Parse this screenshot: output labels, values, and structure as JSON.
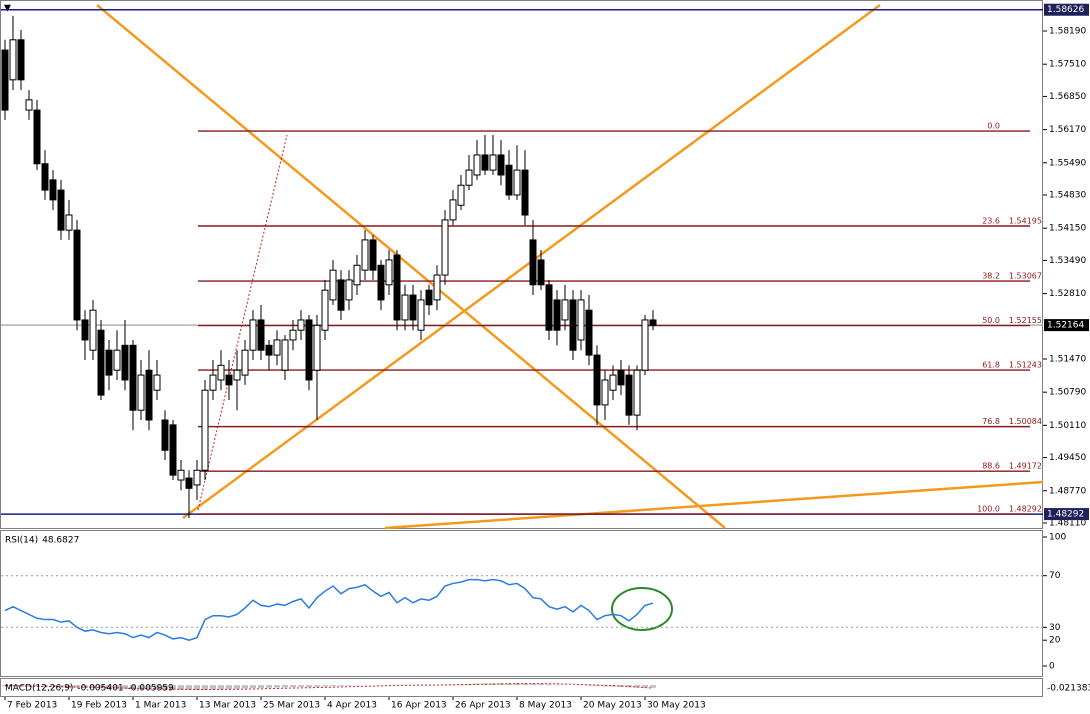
{
  "chart_data": [
    {
      "type": "candlestick",
      "categories": [
        "7 Feb 2013",
        null,
        null,
        null,
        null,
        null,
        null,
        null,
        "19 Feb 2013",
        null,
        null,
        null,
        null,
        null,
        null,
        null,
        "1 Mar 2013",
        null,
        null,
        null,
        null,
        null,
        null,
        null,
        "13 Mar 2013",
        null,
        null,
        null,
        null,
        null,
        null,
        null,
        "25 Mar 2013",
        null,
        null,
        null,
        null,
        null,
        null,
        null,
        "4 Apr 2013",
        null,
        null,
        null,
        null,
        null,
        null,
        null,
        "16 Apr 2013",
        null,
        null,
        null,
        null,
        null,
        null,
        null,
        "26 Apr 2013",
        null,
        null,
        null,
        null,
        null,
        null,
        null,
        "8 May 2013",
        null,
        null,
        null,
        null,
        null,
        null,
        null,
        "20 May 2013",
        null,
        null,
        null,
        null,
        null,
        null,
        null,
        "30 May 2013",
        null
      ],
      "open": [
        1.578,
        1.5719,
        1.5801,
        1.5657,
        1.5657,
        1.5547,
        1.5514,
        1.5493,
        1.5411,
        1.5411,
        1.5227,
        1.5165,
        1.5206,
        1.5165,
        1.5124,
        1.5175,
        1.5175,
        1.5042,
        1.5124,
        1.5083,
        1.5022,
        1.5012,
        1.4899,
        1.4903,
        1.4889,
        1.4919,
        1.5083,
        1.5104,
        1.5114,
        1.5104,
        1.5114,
        1.5165,
        1.5227,
        1.5175,
        1.5155,
        1.5124,
        1.5186,
        1.5206,
        1.5227,
        1.5124,
        1.5206,
        1.5268,
        1.5309,
        1.5268,
        1.5299,
        1.5329,
        1.5391,
        1.5339,
        1.5299,
        1.536,
        1.5227,
        1.5278,
        1.5206,
        1.5288,
        1.5268,
        1.5319,
        1.5432,
        1.5462,
        1.5503,
        1.5524,
        1.5565,
        1.5534,
        1.5565,
        1.5544,
        1.5483,
        1.5534,
        1.5391,
        1.535,
        1.5299,
        1.5268,
        1.5227,
        1.5268,
        1.5186,
        1.5247,
        1.5155,
        1.5053,
        1.5083,
        1.5124,
        1.5114,
        1.5032,
        1.5124,
        1.5227
      ],
      "high": [
        1.5801,
        1.585,
        1.5821,
        1.5698,
        1.5678,
        1.5575,
        1.5534,
        1.5514,
        1.5473,
        1.5432,
        1.5247,
        1.5268,
        1.5227,
        1.5186,
        1.5206,
        1.5227,
        1.5186,
        1.5145,
        1.5165,
        1.5145,
        1.5042,
        1.5022,
        1.494,
        1.4919,
        1.494,
        1.5104,
        1.5145,
        1.5165,
        1.5145,
        1.5165,
        1.5186,
        1.5247,
        1.5258,
        1.5186,
        1.5206,
        1.5196,
        1.5227,
        1.5247,
        1.5237,
        1.5237,
        1.5309,
        1.535,
        1.5329,
        1.5329,
        1.536,
        1.5411,
        1.5401,
        1.535,
        1.537,
        1.537,
        1.5299,
        1.5299,
        1.5288,
        1.5299,
        1.5339,
        1.5452,
        1.5493,
        1.5524,
        1.5565,
        1.5596,
        1.5606,
        1.5606,
        1.5596,
        1.5575,
        1.5585,
        1.5575,
        1.5432,
        1.537,
        1.5309,
        1.5288,
        1.5299,
        1.5288,
        1.5288,
        1.5278,
        1.5175,
        1.5124,
        1.5134,
        1.5145,
        1.5134,
        1.5134,
        1.5237,
        1.5247
      ],
      "low": [
        1.5637,
        1.5698,
        1.5698,
        1.5637,
        1.5534,
        1.5473,
        1.5452,
        1.5391,
        1.5391,
        1.5206,
        1.5145,
        1.5145,
        1.5063,
        1.5083,
        1.5104,
        1.5083,
        1.5001,
        1.5022,
        1.5001,
        1.5063,
        1.494,
        1.4899,
        1.4878,
        1.4821,
        1.4858,
        1.4899,
        1.5063,
        1.5083,
        1.5063,
        1.5042,
        1.5094,
        1.5145,
        1.5145,
        1.5124,
        1.5134,
        1.5104,
        1.5165,
        1.5186,
        1.5083,
        1.5022,
        1.5186,
        1.5258,
        1.5227,
        1.5247,
        1.5278,
        1.5309,
        1.5309,
        1.5247,
        1.5278,
        1.5206,
        1.5206,
        1.5206,
        1.5186,
        1.5237,
        1.5247,
        1.5299,
        1.5421,
        1.5452,
        1.5493,
        1.5514,
        1.5524,
        1.5524,
        1.5503,
        1.5473,
        1.5473,
        1.5421,
        1.5278,
        1.5288,
        1.5186,
        1.5175,
        1.5206,
        1.5145,
        1.5165,
        1.5134,
        1.5012,
        1.5022,
        1.5063,
        1.5073,
        1.5012,
        1.5001,
        1.5114,
        1.5206
      ],
      "close": [
        1.5657,
        1.5801,
        1.5719,
        1.5678,
        1.5547,
        1.5493,
        1.5473,
        1.5411,
        1.5442,
        1.5227,
        1.5186,
        1.5247,
        1.5073,
        1.5114,
        1.5165,
        1.5104,
        1.5042,
        1.5114,
        1.5022,
        1.5114,
        1.496,
        1.4909,
        1.4919,
        1.4882,
        1.4919,
        1.5083,
        1.5114,
        1.5134,
        1.5094,
        1.5124,
        1.5165,
        1.5227,
        1.5165,
        1.5155,
        1.5186,
        1.5186,
        1.5206,
        1.5227,
        1.5104,
        1.5216,
        1.5288,
        1.5329,
        1.5247,
        1.5309,
        1.5339,
        1.5391,
        1.5329,
        1.5268,
        1.535,
        1.5227,
        1.5278,
        1.5227,
        1.5268,
        1.5258,
        1.5319,
        1.5432,
        1.5473,
        1.5503,
        1.5534,
        1.5565,
        1.5534,
        1.5565,
        1.5524,
        1.5483,
        1.5534,
        1.5442,
        1.5299,
        1.5299,
        1.5206,
        1.5206,
        1.5268,
        1.5165,
        1.5268,
        1.5155,
        1.5053,
        1.5104,
        1.5114,
        1.5094,
        1.5032,
        1.5124,
        1.5227,
        1.5216
      ],
      "ylim": [
        1.48007,
        1.58805
      ],
      "yticks": [
        {
          "value": 1.5819,
          "label": "1.58190"
        },
        {
          "value": 1.5751,
          "label": "1.57510"
        },
        {
          "value": 1.5685,
          "label": "1.56850"
        },
        {
          "value": 1.5617,
          "label": "1.56170"
        },
        {
          "value": 1.5549,
          "label": "1.55490"
        },
        {
          "value": 1.5483,
          "label": "1.54830"
        },
        {
          "value": 1.5415,
          "label": "1.54150"
        },
        {
          "value": 1.5349,
          "label": "1.53490"
        },
        {
          "value": 1.5281,
          "label": "1.52810"
        },
        {
          "value": 1.5147,
          "label": "1.51470"
        },
        {
          "value": 1.5079,
          "label": "1.50790"
        },
        {
          "value": 1.5011,
          "label": "1.50110"
        },
        {
          "value": 1.4945,
          "label": "1.49450"
        },
        {
          "value": 1.4877,
          "label": "1.48770"
        },
        {
          "value": 1.4811,
          "label": "1.48110"
        }
      ],
      "price_lines": [
        {
          "value": 1.58626,
          "color": "#1a1a8c"
        },
        {
          "value": 1.52164,
          "color": "#b0b0b0"
        },
        {
          "value": 1.48292,
          "color": "#1a1a8c"
        }
      ],
      "fib_color": "#8b1a1a",
      "fib_levels": [
        {
          "level": "0.0",
          "price": 1.5614,
          "price_shown": false
        },
        {
          "level": "23.6",
          "price": 1.54195
        },
        {
          "level": "38.2",
          "price": 1.53067
        },
        {
          "level": "50.0",
          "price": 1.52155
        },
        {
          "level": "61.8",
          "price": 1.51243
        },
        {
          "level": "76.8",
          "price": 1.50084
        },
        {
          "level": "88.6",
          "price": 1.49172
        },
        {
          "level": "100.0",
          "price": 1.48292
        }
      ]
    },
    {
      "type": "line",
      "title": "RSI(14)",
      "color": "#2a7be4",
      "values": [
        43,
        46,
        43,
        40,
        37,
        36,
        36,
        34,
        35,
        30,
        27,
        28,
        26,
        25,
        26,
        25,
        22,
        24,
        22,
        26,
        24,
        21,
        22,
        20,
        22,
        36,
        39,
        39,
        38,
        40,
        45,
        51,
        47,
        46,
        48,
        47,
        50,
        52,
        45,
        53,
        58,
        62,
        56,
        60,
        61,
        63,
        58,
        54,
        57,
        49,
        53,
        49,
        52,
        51,
        54,
        62,
        64,
        65,
        67,
        67,
        66,
        67,
        66,
        63,
        64,
        60,
        53,
        52,
        46,
        44,
        46,
        42,
        47,
        43,
        36,
        39,
        40,
        39,
        35,
        40,
        47,
        48.6827
      ],
      "ylim": [
        0,
        100
      ],
      "yticks": [
        0,
        20,
        30,
        70,
        100
      ],
      "levels": [
        30,
        70
      ]
    },
    {
      "type": "macd",
      "title": "MACD(12,26,9)",
      "color": "#c0c0c0",
      "signal_color": "#d02020",
      "values": [
        -0.0021,
        -0.0024,
        -0.0028,
        -0.0031,
        -0.0035,
        -0.0038,
        -0.0042,
        -0.0045,
        -0.0048,
        -0.0053,
        -0.0058,
        -0.0062,
        -0.0066,
        -0.007,
        -0.0073,
        -0.0076,
        -0.008,
        -0.0082,
        -0.0085,
        -0.0088,
        -0.0091,
        -0.0094,
        -0.0096,
        -0.0097,
        -0.0096,
        -0.009,
        -0.0085,
        -0.008,
        -0.0075,
        -0.0071,
        -0.0066,
        -0.006,
        -0.0056,
        -0.0052,
        -0.0048,
        -0.0044,
        -0.0041,
        -0.0038,
        -0.0036,
        -0.0032,
        -0.0027,
        -0.0021,
        -0.0016,
        -0.0012,
        -0.0008,
        -0.0003,
        0.0001,
        0.0003,
        0.0004,
        0.0005,
        0.0005,
        0.0004,
        0.0004,
        0.0003,
        0.0004,
        0.0008,
        0.0013,
        0.0018,
        0.0023,
        0.0028,
        0.0032,
        0.0035,
        0.0037,
        0.0037,
        0.0038,
        0.0035,
        0.0029,
        0.0023,
        0.0016,
        0.0009,
        0.0004,
        -0.0002,
        -0.0006,
        -0.0011,
        -0.0018,
        -0.0024,
        -0.003,
        -0.0036,
        -0.0043,
        -0.0049,
        -0.0052,
        -0.005401
      ],
      "signal": [
        -0.001,
        -0.0013,
        -0.0016,
        -0.0019,
        -0.0022,
        -0.0025,
        -0.0028,
        -0.0031,
        -0.0034,
        -0.0037,
        -0.004,
        -0.0044,
        -0.0047,
        -0.0051,
        -0.0054,
        -0.0058,
        -0.0061,
        -0.0065,
        -0.0068,
        -0.0071,
        -0.0075,
        -0.0078,
        -0.0081,
        -0.0084,
        -0.0086,
        -0.0087,
        -0.0087,
        -0.0086,
        -0.0084,
        -0.0082,
        -0.0079,
        -0.0076,
        -0.0073,
        -0.0069,
        -0.0066,
        -0.0062,
        -0.0058,
        -0.0055,
        -0.0051,
        -0.0048,
        -0.0044,
        -0.004,
        -0.0036,
        -0.0032,
        -0.0028,
        -0.0023,
        -0.0019,
        -0.0015,
        -0.0011,
        -0.0008,
        -0.0005,
        -0.0003,
        -0.0001,
        0.0,
        0.0001,
        0.0003,
        0.0005,
        0.0008,
        0.0011,
        0.0014,
        0.0017,
        0.002,
        0.0023,
        0.0026,
        0.0028,
        0.003,
        0.003,
        0.0029,
        0.0027,
        0.0024,
        0.002,
        0.0016,
        0.0011,
        0.0006,
        0.0001,
        -0.0005,
        -0.0011,
        -0.0018,
        -0.0028,
        -0.0038,
        -0.0049,
        -0.005959
      ],
      "ylim": [
        -0.021383,
        0.01
      ],
      "yticks": [
        -0.021383
      ]
    }
  ]
}
